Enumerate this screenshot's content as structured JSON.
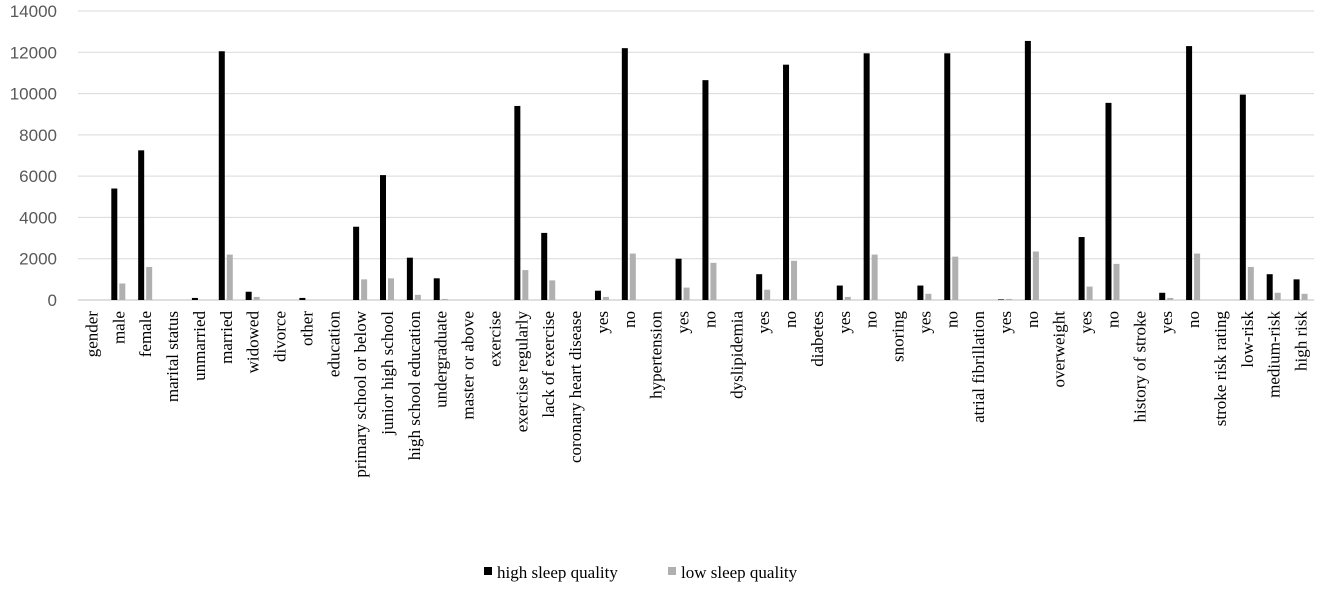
{
  "chart_data": {
    "type": "bar",
    "title": "",
    "xlabel": "",
    "ylabel": "",
    "ylim": [
      0,
      14000
    ],
    "yticks": [
      0,
      2000,
      4000,
      6000,
      8000,
      10000,
      12000,
      14000
    ],
    "grid": true,
    "legend_position": "bottom",
    "categories": [
      "gender",
      "male",
      "female",
      "marital status",
      "unmarried",
      "married",
      "widowed",
      "divorce",
      "other",
      "education",
      "primary school or below",
      "junior high school",
      "high school education",
      "undergraduate",
      "master or above",
      "exercise",
      "exercise regularly",
      "lack of exercise",
      "coronary heart disease",
      "yes",
      "no",
      "hypertension",
      "yes",
      "no",
      "dyslipidemia",
      "yes",
      "no",
      "diabetes",
      "yes",
      "no",
      "snoring",
      "yes",
      "no",
      "atrial fibrillation",
      "yes",
      "no",
      "overweight",
      "yes",
      "no",
      "history of stroke",
      "yes",
      "no",
      "stroke risk rating",
      "low-risk",
      "medium-risk",
      "high risk"
    ],
    "series": [
      {
        "name": "high sleep quality",
        "color": "#000000",
        "values": [
          0,
          5400,
          7250,
          0,
          100,
          12050,
          400,
          0,
          100,
          0,
          3550,
          6050,
          2050,
          1050,
          0,
          0,
          9400,
          3250,
          0,
          450,
          12200,
          0,
          2000,
          10650,
          0,
          1250,
          11400,
          0,
          700,
          11950,
          0,
          700,
          11950,
          0,
          30,
          12550,
          0,
          3050,
          9550,
          0,
          350,
          12300,
          0,
          9950,
          1250,
          1000
        ]
      },
      {
        "name": "low sleep quality",
        "color": "#b0b0b0",
        "values": [
          0,
          800,
          1600,
          0,
          0,
          2200,
          150,
          0,
          0,
          0,
          1000,
          1050,
          250,
          50,
          0,
          0,
          1450,
          950,
          0,
          150,
          2250,
          0,
          600,
          1800,
          0,
          500,
          1900,
          0,
          150,
          2200,
          0,
          300,
          2100,
          0,
          50,
          2350,
          0,
          650,
          1750,
          0,
          100,
          2250,
          0,
          1600,
          350,
          300
        ]
      }
    ]
  }
}
